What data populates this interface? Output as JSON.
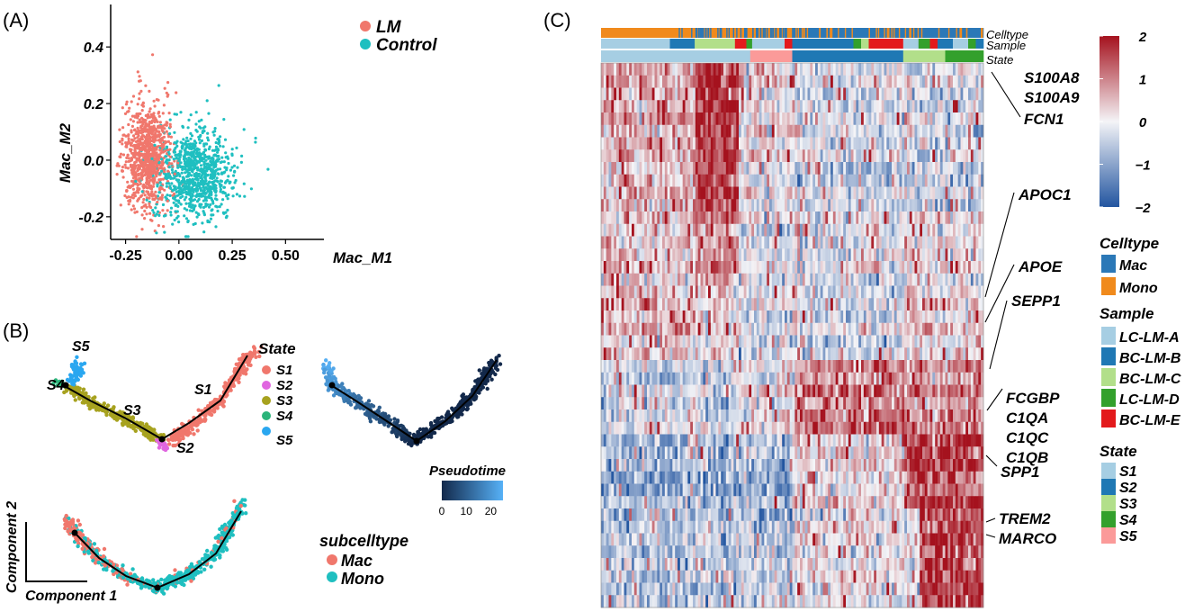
{
  "panel_labels": {
    "a": "(A)",
    "b": "(B)",
    "c": "(C)"
  },
  "colors": {
    "lm": "#F0776C",
    "control": "#1FBFC0",
    "s1": "#F0776C",
    "s2": "#E066E0",
    "s3": "#A7A21F",
    "s4": "#2BB47A",
    "s5": "#2AA7F0",
    "mac": "#F0776C",
    "mono": "#1FBFC0",
    "heat_low": "#2255A0",
    "heat_mid": "#F4F4F7",
    "heat_high": "#A5121E",
    "ann_mac": "#2B78B7",
    "ann_mono": "#F08A1C",
    "sample_a": "#A6CEE3",
    "sample_b": "#1F78B4",
    "sample_c": "#B2DF8A",
    "sample_d": "#33A02C",
    "sample_e": "#E31A1C",
    "state_s1": "#A6CEE3",
    "state_s2": "#1F78B4",
    "state_s3": "#B2DF8A",
    "state_s4": "#33A02C",
    "state_s5": "#FB9A99",
    "pt_dark": "#13294B",
    "pt_light": "#56B1F7"
  },
  "chart_data": [
    {
      "panel": "(A)",
      "type": "scatter",
      "xlabel": "Mac_M1",
      "ylabel": "Mac_M2",
      "xlim": [
        -0.32,
        0.68
      ],
      "ylim": [
        -0.28,
        0.55
      ],
      "xticks": [
        "-0.25",
        "0.00",
        "0.25",
        "0.50"
      ],
      "xtick_values": [
        -0.25,
        0.0,
        0.25,
        0.5
      ],
      "yticks": [
        "-0.2",
        "0.0",
        "0.2",
        "0.4"
      ],
      "ytick_values": [
        -0.2,
        0.0,
        0.2,
        0.4
      ],
      "legend_position": "top-right",
      "series": [
        {
          "name": "LM",
          "color_key": "lm",
          "center": [
            -0.15,
            0.01
          ],
          "spread": [
            0.055,
            0.095
          ],
          "n": 900
        },
        {
          "name": "Control",
          "color_key": "control",
          "center": [
            0.08,
            -0.05
          ],
          "spread": [
            0.09,
            0.08
          ],
          "n": 900
        }
      ]
    },
    {
      "panel": "(B)",
      "type": "scatter",
      "title": "State",
      "legend": [
        "S1",
        "S2",
        "S3",
        "S4",
        "S5"
      ],
      "point_labels": [
        "S5",
        "S4",
        "S3",
        "S1",
        "S2"
      ]
    },
    {
      "panel": "(B)",
      "type": "scatter",
      "colorbar_title": "Pseudotime",
      "colorbar_ticks": [
        "0",
        "10",
        "20"
      ],
      "colorbar_tick_values": [
        0,
        10,
        20
      ],
      "range": [
        0,
        25
      ]
    },
    {
      "panel": "(B)",
      "type": "scatter",
      "title": "subcelltype",
      "legend": [
        "Mac",
        "Mono"
      ],
      "xlabel": "Component 1",
      "ylabel": "Component 2"
    },
    {
      "panel": "(C)",
      "type": "heatmap",
      "annotation_labels": [
        "Celltype",
        "Sample",
        "State"
      ],
      "colorbar_ticks": [
        "2",
        "1",
        "0",
        "−1",
        "−2"
      ],
      "colorbar_tick_values": [
        2,
        1,
        0,
        -1,
        -2
      ],
      "gene_labels": [
        "S100A8",
        "S100A9",
        "FCN1",
        "APOC1",
        "APOE",
        "SEPP1",
        "FCGBP",
        "C1QA",
        "C1QC",
        "C1QB",
        "SPP1",
        "TREM2",
        "MARCO"
      ],
      "legends": [
        {
          "title": "Celltype",
          "items": [
            "Mac",
            "Mono"
          ]
        },
        {
          "title": "Sample",
          "items": [
            "LC-LM-A",
            "BC-LM-B",
            "BC-LM-C",
            "LC-LM-D",
            "BC-LM-E"
          ]
        },
        {
          "title": "State",
          "items": [
            "S1",
            "S2",
            "S3",
            "S4",
            "S5"
          ]
        }
      ]
    }
  ]
}
